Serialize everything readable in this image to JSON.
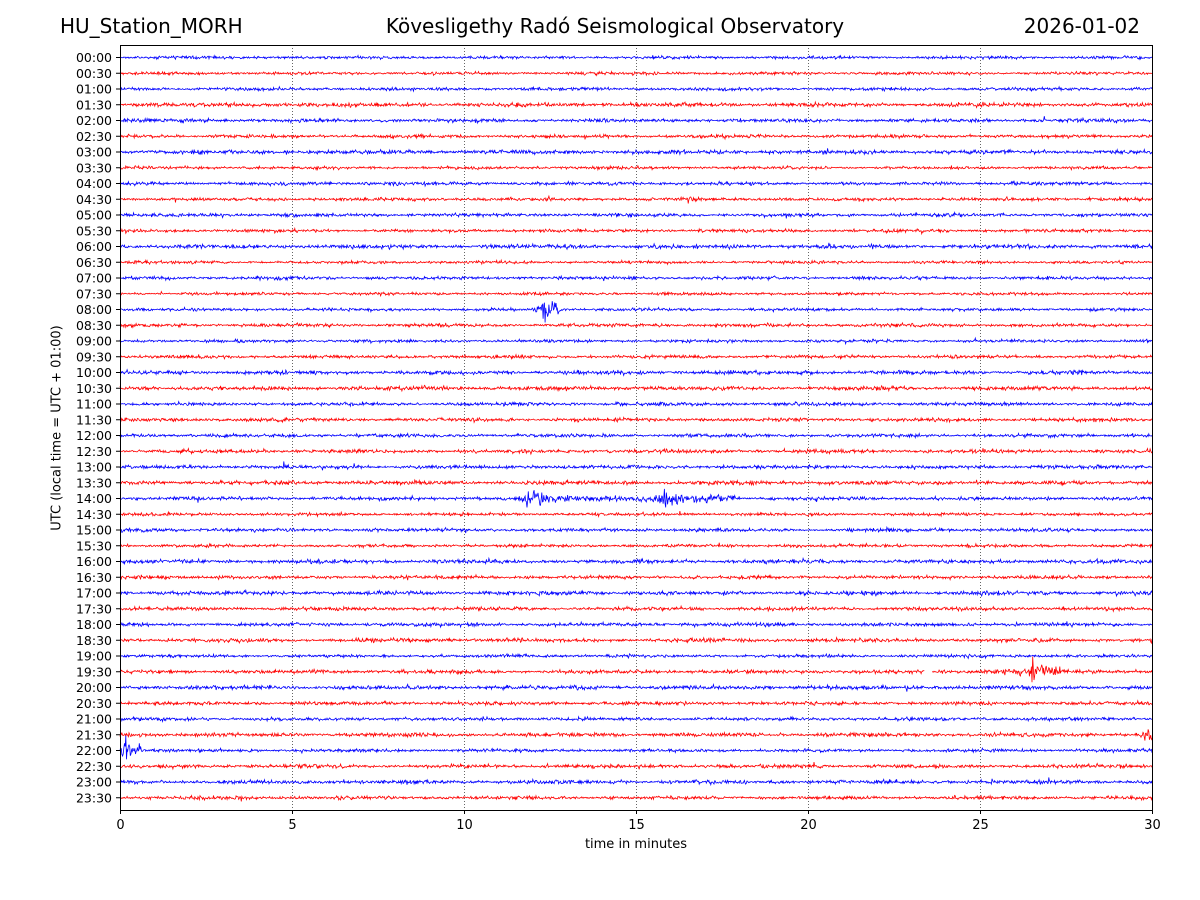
{
  "header": {
    "station": "HU_Station_MORH",
    "title": "Kövesligethy Radó Seismological Observatory",
    "date": "2026-01-02"
  },
  "chart_data": {
    "type": "line",
    "title": "Kövesligethy Radó Seismological Observatory",
    "xlabel": "time in minutes",
    "ylabel": "UTC (local time = UTC + 01:00)",
    "xlim": [
      0,
      30
    ],
    "xticks": [
      "0",
      "5",
      "10",
      "15",
      "20",
      "25",
      "30"
    ],
    "grid": "vertical dotted at 5-minute ticks",
    "rows": [
      "00:00",
      "00:30",
      "01:00",
      "01:30",
      "02:00",
      "02:30",
      "03:00",
      "03:30",
      "04:00",
      "04:30",
      "05:00",
      "05:30",
      "06:00",
      "06:30",
      "07:00",
      "07:30",
      "08:00",
      "08:30",
      "09:00",
      "09:30",
      "10:00",
      "10:30",
      "11:00",
      "11:30",
      "12:00",
      "12:30",
      "13:00",
      "13:30",
      "14:00",
      "14:30",
      "15:00",
      "15:30",
      "16:00",
      "16:30",
      "17:00",
      "17:30",
      "18:00",
      "18:30",
      "19:00",
      "19:30",
      "20:00",
      "20:30",
      "21:00",
      "21:30",
      "22:00",
      "22:30",
      "23:00",
      "23:30"
    ],
    "trace_colors": [
      "#0000ff",
      "#ff0000"
    ],
    "events": [
      {
        "row": "14:00",
        "start_min": 11.7,
        "end_min": 18.0,
        "peaks_min": [
          11.8,
          15.7
        ],
        "note": "earthquake signal"
      },
      {
        "row": "19:30",
        "start_min": 25.0,
        "end_min": 27.5,
        "peaks_min": [
          26.5
        ]
      },
      {
        "row": "19:30",
        "gap_min": [
          23.4,
          23.6
        ]
      },
      {
        "row": "22:00",
        "start_min": 0,
        "end_min": 0.6,
        "peaks_min": [
          0.1
        ]
      },
      {
        "row": "21:30",
        "start_min": 29.6,
        "end_min": 30,
        "peaks_min": [
          29.8
        ]
      },
      {
        "row": "08:00",
        "start_min": 12.0,
        "end_min": 12.8,
        "peaks_min": [
          12.3
        ]
      }
    ]
  }
}
